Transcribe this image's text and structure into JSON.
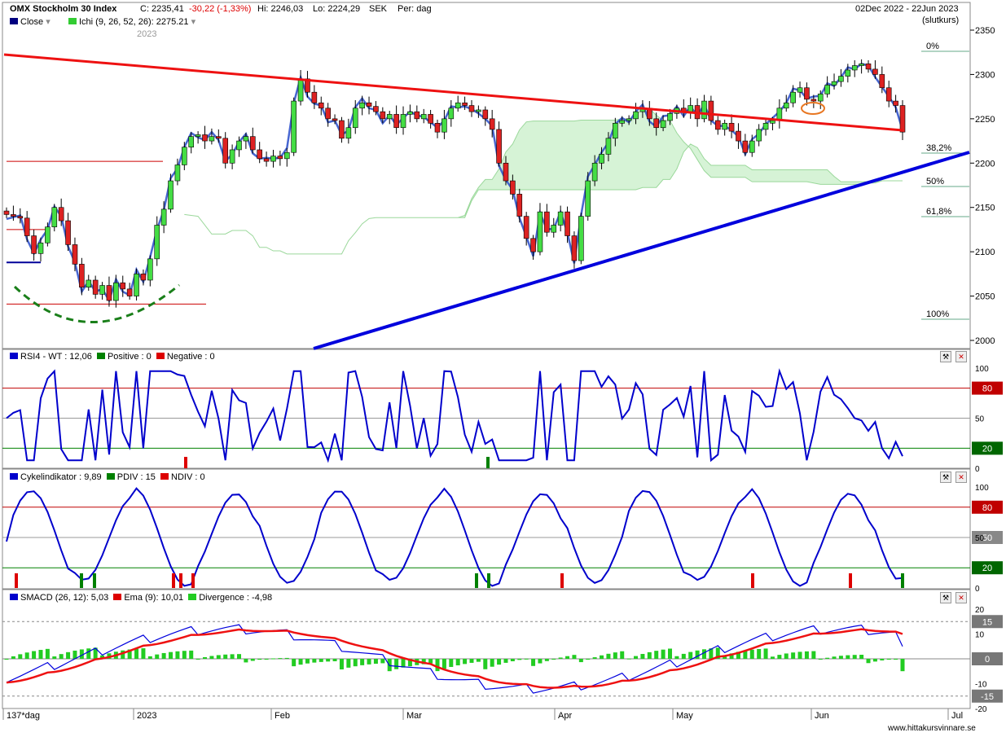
{
  "header": {
    "title": "OMX Stockholm 30 Index",
    "close": "C: 2235,41",
    "change": "-30,22 (-1,33%)",
    "high": "Hi: 2246,03",
    "low": "Lo: 2224,29",
    "currency": "SEK",
    "period": "Per: dag",
    "date_range": "02Dec 2022 - 22Jun 2023",
    "price_type": "(slutkurs)",
    "legend_close": "Close",
    "legend_ichi": "Ichi (9, 26, 52, 26): 2275.21",
    "year_watermark": "2023"
  },
  "colors": {
    "up_candle": "#44dd44",
    "down_candle": "#dd2222",
    "close_line": "#3355cc",
    "red_trend": "#ee1111",
    "blue_trend": "#0000dd",
    "cloud": "#d6f3d6",
    "cloud_neg": "#ffd0dd",
    "indicator_line": "#0000cc",
    "level_high": "#c00000",
    "level_low": "#008000"
  },
  "panels": {
    "rsi": {
      "legend": [
        "RSI4 - WT : 12,06",
        "Positive : 0",
        "Negative : 0"
      ],
      "levels": [
        "80",
        "50",
        "20"
      ],
      "axis": [
        "100",
        "50",
        "0"
      ]
    },
    "cycle": {
      "legend": [
        "Cykelindikator : 9,89",
        "PDIV : 15",
        "NDIV : 0"
      ],
      "levels": [
        "80",
        "50",
        "20"
      ],
      "axis": [
        "100",
        "50",
        "0"
      ]
    },
    "macd": {
      "legend": [
        "SMACD (26, 12): 5,03",
        "Ema (9): 10,01",
        "Divergence : -4,98"
      ],
      "levels": [
        "15",
        "0",
        "-15"
      ],
      "axis": [
        "20",
        "10",
        "0",
        "-10",
        "-20"
      ]
    }
  },
  "fib_labels": [
    "0%",
    "38,2%",
    "50%",
    "61,8%",
    "100%"
  ],
  "x_axis": {
    "labels": [
      "137*dag",
      "2023",
      "Feb",
      "Mar",
      "Apr",
      "May",
      "Jun",
      "Jul"
    ]
  },
  "footer": {
    "source": "www.hittakursvinnare.se"
  },
  "chart_data": {
    "type": "candlestick",
    "title": "OMX Stockholm 30 Index",
    "y_ticks": [
      2000,
      2050,
      2100,
      2150,
      2200,
      2250,
      2300,
      2350
    ],
    "ylim": [
      1990,
      2365
    ],
    "start": "2022-12-02",
    "end": "2023-06-22",
    "close": [
      2142,
      2140,
      2138,
      2118,
      2098,
      2110,
      2128,
      2150,
      2135,
      2108,
      2086,
      2060,
      2068,
      2052,
      2062,
      2045,
      2065,
      2058,
      2050,
      2075,
      2068,
      2092,
      2130,
      2148,
      2180,
      2198,
      2218,
      2230,
      2232,
      2225,
      2230,
      2228,
      2200,
      2215,
      2225,
      2230,
      2215,
      2205,
      2202,
      2208,
      2205,
      2212,
      2270,
      2295,
      2280,
      2268,
      2262,
      2250,
      2248,
      2228,
      2240,
      2262,
      2268,
      2264,
      2258,
      2250,
      2255,
      2240,
      2255,
      2258,
      2250,
      2255,
      2245,
      2235,
      2250,
      2262,
      2268,
      2265,
      2258,
      2260,
      2250,
      2238,
      2200,
      2180,
      2165,
      2140,
      2115,
      2100,
      2145,
      2122,
      2130,
      2145,
      2118,
      2090,
      2140,
      2180,
      2200,
      2210,
      2228,
      2245,
      2248,
      2250,
      2258,
      2262,
      2250,
      2240,
      2248,
      2256,
      2262,
      2258,
      2265,
      2250,
      2270,
      2248,
      2238,
      2245,
      2236,
      2225,
      2212,
      2225,
      2238,
      2245,
      2248,
      2262,
      2268,
      2280,
      2285,
      2272,
      2270,
      2278,
      2288,
      2292,
      2298,
      2305,
      2310,
      2312,
      2306,
      2300,
      2285,
      2270,
      2265,
      2235
    ]
  }
}
